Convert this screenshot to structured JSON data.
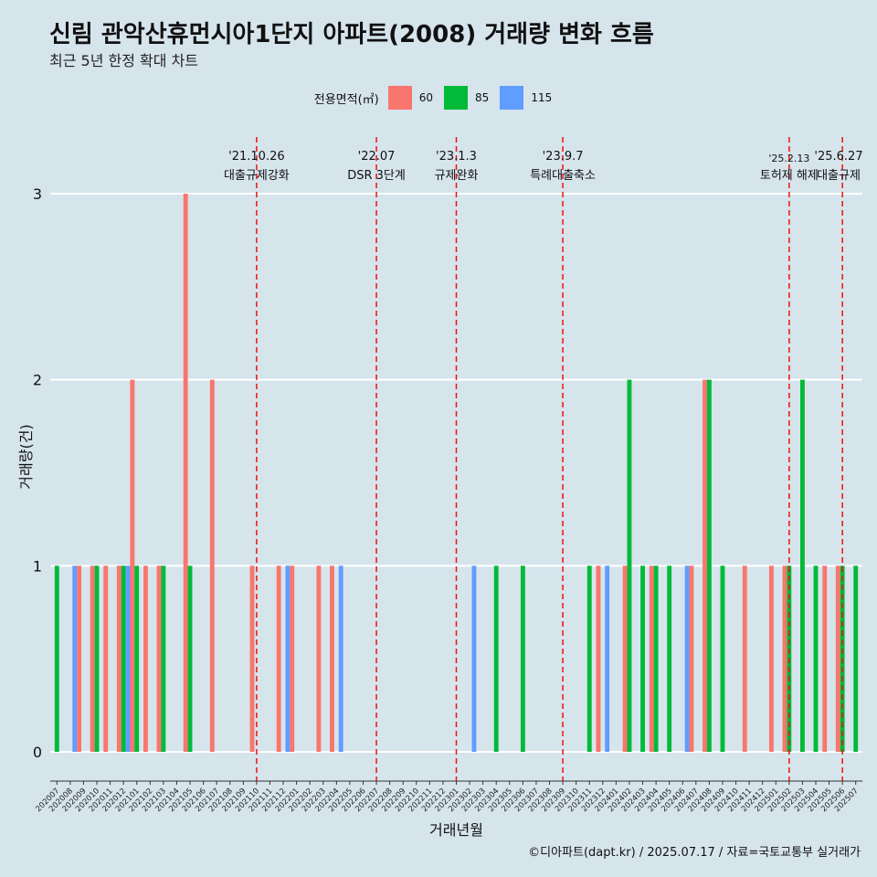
{
  "header": {
    "title": "신림 관악산휴먼시아1단지 아파트(2008) 거래량 변화 흐름",
    "subtitle": "최근 5년 한정 확대 차트"
  },
  "legend": {
    "title": "전용면적(㎡)",
    "items": [
      {
        "label": "60",
        "color": "#f8766d"
      },
      {
        "label": "85",
        "color": "#00ba38"
      },
      {
        "label": "115",
        "color": "#619cff"
      }
    ]
  },
  "caption": "©디아파트(dapt.kr) / 2025.07.17 / 자료=국토교통부 실거래가",
  "chart_data": {
    "type": "bar",
    "xlabel": "거래년월",
    "ylabel": "거래량(건)",
    "ylim": [
      0,
      3
    ],
    "yticks": [
      "0",
      "1",
      "2",
      "3"
    ],
    "grid": true,
    "legend_position": "top",
    "months": [
      "202007",
      "202008",
      "202009",
      "202010",
      "202011",
      "202012",
      "202101",
      "202102",
      "202103",
      "202104",
      "202105",
      "202106",
      "202107",
      "202108",
      "202109",
      "202110",
      "202111",
      "202112",
      "202201",
      "202202",
      "202203",
      "202204",
      "202205",
      "202206",
      "202207",
      "202208",
      "202209",
      "202210",
      "202211",
      "202212",
      "202301",
      "202302",
      "202303",
      "202304",
      "202305",
      "202306",
      "202307",
      "202308",
      "202309",
      "202310",
      "202311",
      "202312",
      "202401",
      "202402",
      "202403",
      "202404",
      "202405",
      "202406",
      "202407",
      "202408",
      "202409",
      "202410",
      "202411",
      "202412",
      "202501",
      "202502",
      "202503",
      "202504",
      "202505",
      "202506",
      "202507"
    ],
    "series": [
      {
        "name": "60",
        "color": "#f8766d",
        "values": [
          0,
          0,
          1,
          1,
          1,
          1,
          2,
          1,
          1,
          0,
          3,
          0,
          2,
          0,
          0,
          1,
          0,
          1,
          1,
          0,
          1,
          1,
          0,
          0,
          0,
          0,
          0,
          0,
          0,
          0,
          0,
          0,
          0,
          0,
          0,
          0,
          0,
          0,
          0,
          0,
          0,
          1,
          0,
          1,
          0,
          1,
          0,
          0,
          1,
          2,
          0,
          0,
          1,
          0,
          1,
          1,
          0,
          0,
          1,
          1,
          0
        ]
      },
      {
        "name": "85",
        "color": "#00ba38",
        "values": [
          1,
          0,
          0,
          1,
          0,
          1,
          1,
          0,
          1,
          0,
          1,
          0,
          0,
          0,
          0,
          0,
          0,
          0,
          0,
          0,
          0,
          0,
          0,
          0,
          0,
          0,
          0,
          0,
          0,
          0,
          0,
          0,
          0,
          1,
          0,
          1,
          0,
          0,
          0,
          0,
          1,
          0,
          0,
          2,
          1,
          1,
          1,
          0,
          0,
          2,
          1,
          0,
          0,
          0,
          0,
          1,
          2,
          1,
          0,
          1,
          1
        ]
      },
      {
        "name": "115",
        "color": "#619cff",
        "values": [
          0,
          1,
          0,
          0,
          0,
          1,
          0,
          0,
          0,
          0,
          0,
          0,
          0,
          0,
          0,
          0,
          0,
          1,
          0,
          0,
          0,
          1,
          0,
          0,
          0,
          0,
          0,
          0,
          0,
          0,
          0,
          1,
          0,
          0,
          0,
          0,
          0,
          0,
          0,
          0,
          0,
          1,
          0,
          0,
          0,
          0,
          0,
          1,
          0,
          0,
          0,
          0,
          0,
          0,
          0,
          0,
          0,
          0,
          0,
          0,
          0
        ]
      }
    ],
    "annotations": [
      {
        "month": "202110",
        "date": "'21.10.26",
        "label": "대출규제강화"
      },
      {
        "month": "202207",
        "date": "'22.07",
        "label": "DSR 3단계"
      },
      {
        "month": "202301",
        "date": "'23.1.3",
        "label": "규제완화"
      },
      {
        "month": "202309",
        "date": "'23.9.7",
        "label": "특례대출축소"
      },
      {
        "month": "202502",
        "date": "'25.2.13",
        "label": "토허제 해제"
      },
      {
        "month": "202506",
        "date": "'25.6.27",
        "label": "대출규제"
      }
    ]
  }
}
